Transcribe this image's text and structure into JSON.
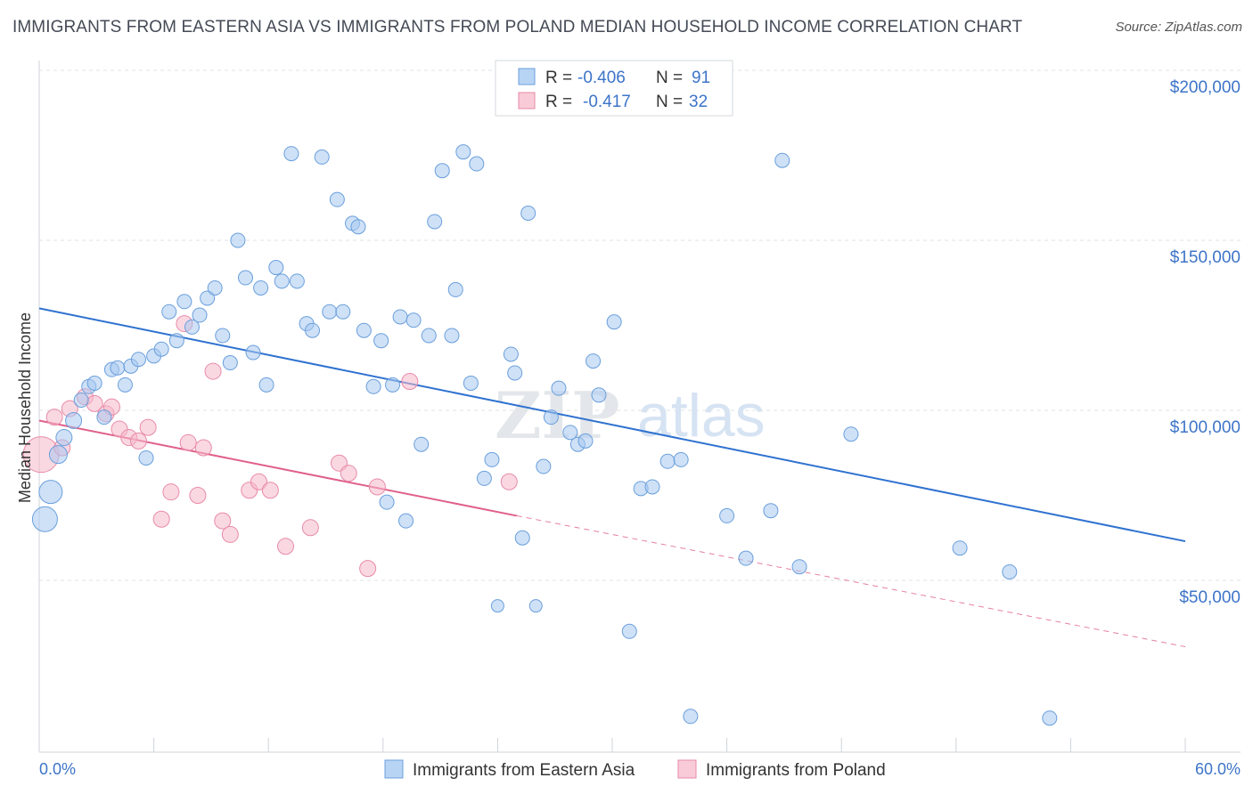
{
  "title": "IMMIGRANTS FROM EASTERN ASIA VS IMMIGRANTS FROM POLAND MEDIAN HOUSEHOLD INCOME CORRELATION CHART",
  "source": "Source: ZipAtlas.com",
  "watermark": {
    "part1": "ZIP",
    "part2": "atlas"
  },
  "colors": {
    "blue": "#a8c8f0",
    "blue_stroke": "#6a9fdc",
    "blue_line": "#2f72d0",
    "pink": "#f6b8cb",
    "pink_stroke": "#e88aa8",
    "pink_line": "#e0608a"
  },
  "legend": {
    "r_label": "R =",
    "n_label": "N =",
    "series1": {
      "r": "-0.406",
      "n": "91"
    },
    "series2": {
      "r": "-0.417",
      "n": "32"
    }
  },
  "chart_data": {
    "type": "scatter",
    "title": "IMMIGRANTS FROM EASTERN ASIA VS IMMIGRANTS FROM POLAND MEDIAN HOUSEHOLD INCOME CORRELATION CHART",
    "xlabel": "",
    "ylabel": "Median Household Income",
    "xlim": [
      0,
      60
    ],
    "ylim": [
      0,
      210000
    ],
    "x_tick_labels": [
      "0.0%",
      "60.0%"
    ],
    "y_ticks": [
      50000,
      100000,
      150000,
      200000
    ],
    "y_tick_labels": [
      "$50,000",
      "$100,000",
      "$150,000",
      "$200,000"
    ],
    "series": [
      {
        "name": "Immigrants from Eastern Asia",
        "color": "#a8c8f0",
        "trend": {
          "x": [
            0,
            60
          ],
          "y": [
            130000,
            61500
          ]
        },
        "points": [
          [
            0.3,
            68000,
            14
          ],
          [
            0.6,
            76000,
            13
          ],
          [
            1.0,
            87000,
            10
          ],
          [
            1.3,
            92000,
            9
          ],
          [
            1.8,
            97000,
            9
          ],
          [
            2.2,
            103000,
            8
          ],
          [
            2.6,
            107000,
            8
          ],
          [
            2.9,
            108000,
            8
          ],
          [
            3.4,
            98000,
            8
          ],
          [
            3.8,
            112000,
            8
          ],
          [
            4.1,
            112500,
            8
          ],
          [
            4.5,
            107500,
            8
          ],
          [
            4.8,
            113000,
            8
          ],
          [
            5.2,
            115000,
            8
          ],
          [
            5.6,
            86000,
            8
          ],
          [
            6.0,
            116000,
            8
          ],
          [
            6.4,
            118000,
            8
          ],
          [
            6.8,
            129000,
            8
          ],
          [
            7.2,
            120500,
            8
          ],
          [
            7.6,
            132000,
            8
          ],
          [
            8.0,
            124500,
            8
          ],
          [
            8.4,
            128000,
            8
          ],
          [
            8.8,
            133000,
            8
          ],
          [
            9.2,
            136000,
            8
          ],
          [
            9.6,
            122000,
            8
          ],
          [
            10.0,
            114000,
            8
          ],
          [
            10.4,
            150000,
            8
          ],
          [
            10.8,
            139000,
            8
          ],
          [
            11.2,
            117000,
            8
          ],
          [
            11.6,
            136000,
            8
          ],
          [
            11.9,
            107500,
            8
          ],
          [
            12.4,
            142000,
            8
          ],
          [
            12.7,
            138000,
            8
          ],
          [
            13.2,
            175500,
            8
          ],
          [
            13.5,
            138000,
            8
          ],
          [
            14.0,
            125500,
            8
          ],
          [
            14.3,
            123500,
            8
          ],
          [
            14.8,
            174500,
            8
          ],
          [
            15.2,
            129000,
            8
          ],
          [
            15.6,
            162000,
            8
          ],
          [
            15.9,
            129000,
            8
          ],
          [
            16.4,
            155000,
            8
          ],
          [
            16.7,
            154000,
            8
          ],
          [
            17.0,
            123500,
            8
          ],
          [
            17.5,
            107000,
            8
          ],
          [
            17.9,
            120500,
            8
          ],
          [
            18.2,
            73000,
            8
          ],
          [
            18.5,
            107500,
            8
          ],
          [
            18.9,
            127500,
            8
          ],
          [
            19.2,
            67500,
            8
          ],
          [
            19.6,
            126500,
            8
          ],
          [
            20.0,
            90000,
            8
          ],
          [
            20.4,
            122000,
            8
          ],
          [
            20.7,
            155500,
            8
          ],
          [
            21.1,
            170500,
            8
          ],
          [
            21.6,
            122000,
            8
          ],
          [
            21.8,
            135500,
            8
          ],
          [
            22.2,
            176000,
            8
          ],
          [
            22.6,
            108000,
            8
          ],
          [
            22.9,
            172500,
            8
          ],
          [
            23.3,
            80000,
            8
          ],
          [
            23.7,
            85500,
            8
          ],
          [
            24.0,
            42500,
            7
          ],
          [
            24.7,
            116500,
            8
          ],
          [
            24.9,
            111000,
            8
          ],
          [
            25.3,
            62500,
            8
          ],
          [
            25.6,
            158000,
            8
          ],
          [
            26.0,
            42500,
            7
          ],
          [
            26.4,
            83500,
            8
          ],
          [
            26.8,
            98000,
            8
          ],
          [
            27.2,
            106500,
            8
          ],
          [
            27.8,
            93500,
            8
          ],
          [
            28.2,
            90000,
            8
          ],
          [
            28.6,
            91000,
            8
          ],
          [
            29.0,
            114500,
            8
          ],
          [
            29.3,
            104500,
            8
          ],
          [
            30.1,
            126000,
            8
          ],
          [
            30.9,
            35000,
            8
          ],
          [
            31.5,
            77000,
            8
          ],
          [
            32.1,
            77500,
            8
          ],
          [
            32.9,
            85000,
            8
          ],
          [
            33.6,
            85500,
            8
          ],
          [
            34.1,
            10000,
            8
          ],
          [
            36.0,
            69000,
            8
          ],
          [
            37.0,
            56500,
            8
          ],
          [
            38.3,
            70500,
            8
          ],
          [
            38.9,
            173500,
            8
          ],
          [
            39.8,
            54000,
            8
          ],
          [
            42.5,
            93000,
            8
          ],
          [
            48.2,
            59500,
            8
          ],
          [
            50.8,
            52500,
            8
          ],
          [
            52.9,
            9500,
            8
          ]
        ]
      },
      {
        "name": "Immigrants from Poland",
        "color": "#f6b8cb",
        "trend": {
          "x": [
            0,
            25
          ],
          "y": [
            97000,
            69000
          ]
        },
        "trend_extension": {
          "x": [
            25,
            60
          ],
          "y": [
            69000,
            30500
          ]
        },
        "points": [
          [
            0.1,
            87000,
            20
          ],
          [
            0.8,
            98000,
            9
          ],
          [
            1.2,
            89000,
            9
          ],
          [
            1.6,
            100500,
            9
          ],
          [
            2.4,
            104000,
            9
          ],
          [
            2.9,
            102000,
            9
          ],
          [
            3.5,
            99000,
            9
          ],
          [
            3.8,
            101000,
            9
          ],
          [
            4.2,
            94500,
            9
          ],
          [
            4.7,
            92000,
            9
          ],
          [
            5.2,
            91000,
            9
          ],
          [
            5.7,
            95000,
            9
          ],
          [
            6.4,
            68000,
            9
          ],
          [
            6.9,
            76000,
            9
          ],
          [
            7.6,
            125500,
            9
          ],
          [
            7.8,
            90500,
            9
          ],
          [
            8.3,
            75000,
            9
          ],
          [
            8.6,
            89000,
            9
          ],
          [
            9.1,
            111500,
            9
          ],
          [
            9.6,
            67500,
            9
          ],
          [
            10.0,
            63500,
            9
          ],
          [
            11.0,
            76500,
            9
          ],
          [
            11.5,
            79000,
            9
          ],
          [
            12.1,
            76500,
            9
          ],
          [
            12.9,
            60000,
            9
          ],
          [
            14.2,
            65500,
            9
          ],
          [
            15.7,
            84500,
            9
          ],
          [
            16.2,
            81500,
            9
          ],
          [
            17.2,
            53500,
            9
          ],
          [
            17.7,
            77500,
            9
          ],
          [
            19.4,
            108500,
            9
          ],
          [
            24.6,
            79000,
            9
          ]
        ]
      }
    ]
  }
}
